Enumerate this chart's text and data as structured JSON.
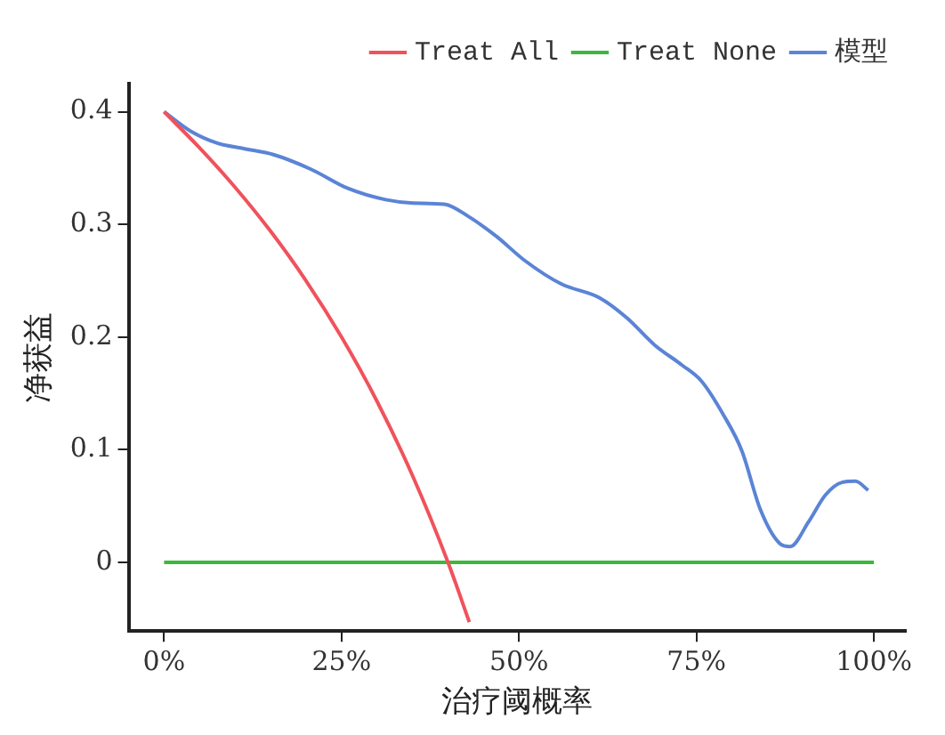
{
  "chart_data": {
    "type": "line",
    "xlabel": "治疗阈概率",
    "ylabel": "净获益",
    "xlim": [
      -0.05,
      1.045
    ],
    "ylim": [
      -0.061,
      0.425
    ],
    "xticks": [
      {
        "value": 0,
        "label": "0%"
      },
      {
        "value": 0.25,
        "label": "25%"
      },
      {
        "value": 0.5,
        "label": "50%"
      },
      {
        "value": 0.75,
        "label": "75%"
      },
      {
        "value": 1,
        "label": "100%"
      }
    ],
    "yticks": [
      0,
      0.1,
      0.2,
      0.3,
      0.4
    ],
    "grid": false,
    "legend": "top right",
    "marker": "none",
    "line_style": "solid",
    "series": [
      {
        "name": "Treat All",
        "color": "#f0525c",
        "x": [
          0,
          0.05,
          0.1,
          0.15,
          0.2,
          0.25,
          0.3,
          0.35,
          0.4,
          0.43
        ],
        "values": [
          0.4,
          0.368,
          0.333,
          0.294,
          0.25,
          0.2,
          0.143,
          0.077,
          0,
          -0.053
        ]
      },
      {
        "name": "Treat None",
        "color": "#3cb83c",
        "x": [
          0,
          1
        ],
        "values": [
          0,
          0
        ]
      },
      {
        "name": "模型",
        "color": "#5b84d6",
        "x": [
          0,
          0.037,
          0.076,
          0.115,
          0.154,
          0.207,
          0.259,
          0.312,
          0.351,
          0.395,
          0.429,
          0.469,
          0.508,
          0.56,
          0.613,
          0.652,
          0.691,
          0.73,
          0.757,
          0.788,
          0.814,
          0.84,
          0.867,
          0.882,
          0.908,
          0.932,
          0.955,
          0.974,
          0.992
        ],
        "values": [
          0.4,
          0.383,
          0.372,
          0.367,
          0.362,
          0.349,
          0.332,
          0.322,
          0.319,
          0.318,
          0.307,
          0.289,
          0.268,
          0.247,
          0.235,
          0.217,
          0.193,
          0.175,
          0.161,
          0.131,
          0.099,
          0.047,
          0.017,
          0.014,
          0.036,
          0.06,
          0.071,
          0.072,
          0.064
        ]
      }
    ]
  }
}
